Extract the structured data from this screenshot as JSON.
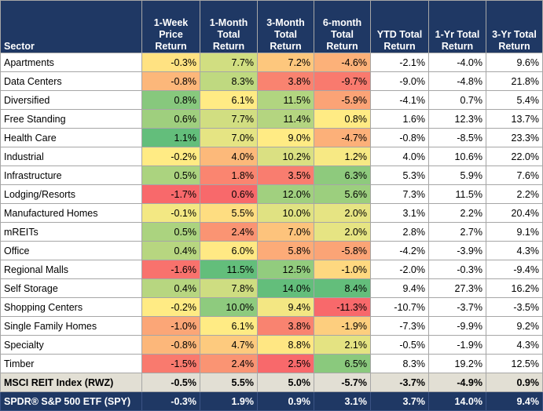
{
  "columns": [
    "Sector",
    "1-Week Price Return",
    "1-Month Total Return",
    "3-Month Total Return",
    "6-month Total Return",
    "YTD Total Return",
    "1-Yr Total Return",
    "3-Yr Total Return"
  ],
  "header_lines": [
    [
      "Sector"
    ],
    [
      "1-Week",
      "Price",
      "Return"
    ],
    [
      "1-Month",
      "Total",
      "Return"
    ],
    [
      "3-Month",
      "Total",
      "Return"
    ],
    [
      "6-month",
      "Total",
      "Return"
    ],
    [
      "YTD Total",
      "Return"
    ],
    [
      "1-Yr Total",
      "Return"
    ],
    [
      "3-Yr Total",
      "Return"
    ]
  ],
  "rows": [
    {
      "sector": "Apartments",
      "w1": "-0.3%",
      "m1": "7.7%",
      "m3": "7.2%",
      "m6": "-4.6%",
      "ytd": "-2.1%",
      "y1": "-4.0%",
      "y3": "9.6%"
    },
    {
      "sector": "Data Centers",
      "w1": "-0.8%",
      "m1": "8.3%",
      "m3": "3.8%",
      "m6": "-9.7%",
      "ytd": "-9.0%",
      "y1": "-4.8%",
      "y3": "21.8%"
    },
    {
      "sector": "Diversified",
      "w1": "0.8%",
      "m1": "6.1%",
      "m3": "11.5%",
      "m6": "-5.9%",
      "ytd": "-4.1%",
      "y1": "0.7%",
      "y3": "5.4%"
    },
    {
      "sector": "Free Standing",
      "w1": "0.6%",
      "m1": "7.7%",
      "m3": "11.4%",
      "m6": "0.8%",
      "ytd": "1.6%",
      "y1": "12.3%",
      "y3": "13.7%"
    },
    {
      "sector": "Health Care",
      "w1": "1.1%",
      "m1": "7.0%",
      "m3": "9.0%",
      "m6": "-4.7%",
      "ytd": "-0.8%",
      "y1": "-8.5%",
      "y3": "23.3%"
    },
    {
      "sector": "Industrial",
      "w1": "-0.2%",
      "m1": "4.0%",
      "m3": "10.2%",
      "m6": "1.2%",
      "ytd": "4.0%",
      "y1": "10.6%",
      "y3": "22.0%"
    },
    {
      "sector": "Infrastructure",
      "w1": "0.5%",
      "m1": "1.8%",
      "m3": "3.5%",
      "m6": "6.3%",
      "ytd": "5.3%",
      "y1": "5.9%",
      "y3": "7.6%"
    },
    {
      "sector": "Lodging/Resorts",
      "w1": "-1.7%",
      "m1": "0.6%",
      "m3": "12.0%",
      "m6": "5.6%",
      "ytd": "7.3%",
      "y1": "11.5%",
      "y3": "2.2%"
    },
    {
      "sector": "Manufactured Homes",
      "w1": "-0.1%",
      "m1": "5.5%",
      "m3": "10.0%",
      "m6": "2.0%",
      "ytd": "3.1%",
      "y1": "2.2%",
      "y3": "20.4%"
    },
    {
      "sector": "mREITs",
      "w1": "0.5%",
      "m1": "2.4%",
      "m3": "7.0%",
      "m6": "2.0%",
      "ytd": "2.8%",
      "y1": "2.7%",
      "y3": "9.1%"
    },
    {
      "sector": "Office",
      "w1": "0.4%",
      "m1": "6.0%",
      "m3": "5.8%",
      "m6": "-5.8%",
      "ytd": "-4.2%",
      "y1": "-3.9%",
      "y3": "4.3%"
    },
    {
      "sector": "Regional Malls",
      "w1": "-1.6%",
      "m1": "11.5%",
      "m3": "12.5%",
      "m6": "-1.0%",
      "ytd": "-2.0%",
      "y1": "-0.3%",
      "y3": "-9.4%"
    },
    {
      "sector": "Self Storage",
      "w1": "0.4%",
      "m1": "7.8%",
      "m3": "14.0%",
      "m6": "8.4%",
      "ytd": "9.4%",
      "y1": "27.3%",
      "y3": "16.2%"
    },
    {
      "sector": "Shopping Centers",
      "w1": "-0.2%",
      "m1": "10.0%",
      "m3": "9.4%",
      "m6": "-11.3%",
      "ytd": "-10.7%",
      "y1": "-3.7%",
      "y3": "-3.5%"
    },
    {
      "sector": "Single Family Homes",
      "w1": "-1.0%",
      "m1": "6.1%",
      "m3": "3.8%",
      "m6": "-1.9%",
      "ytd": "-7.3%",
      "y1": "-9.9%",
      "y3": "9.2%"
    },
    {
      "sector": "Specialty",
      "w1": "-0.8%",
      "m1": "4.7%",
      "m3": "8.8%",
      "m6": "2.1%",
      "ytd": "-0.5%",
      "y1": "-1.9%",
      "y3": "4.3%"
    },
    {
      "sector": "Timber",
      "w1": "-1.5%",
      "m1": "2.4%",
      "m3": "2.5%",
      "m6": "6.5%",
      "ytd": "8.3%",
      "y1": "19.2%",
      "y3": "12.5%"
    }
  ],
  "index_row": {
    "sector": "MSCI REIT Index (RWZ)",
    "w1": "-0.5%",
    "m1": "5.5%",
    "m3": "5.0%",
    "m6": "-5.7%",
    "ytd": "-3.7%",
    "y1": "-4.9%",
    "y3": "0.9%"
  },
  "spy_row": {
    "sector": "SPDR® S&P 500 ETF (SPY)",
    "w1": "-0.3%",
    "m1": "1.9%",
    "m3": "0.9%",
    "m6": "3.1%",
    "ytd": "3.7%",
    "y1": "14.0%",
    "y3": "9.4%"
  },
  "heatmap_colors": {
    "low": "#f8696b",
    "mid": "#ffeb84",
    "high": "#63be7b"
  },
  "colors": {
    "header_bg": "#1f3864",
    "index_row_bg": "#e2dfd4",
    "grid": "#a6a6a6"
  }
}
